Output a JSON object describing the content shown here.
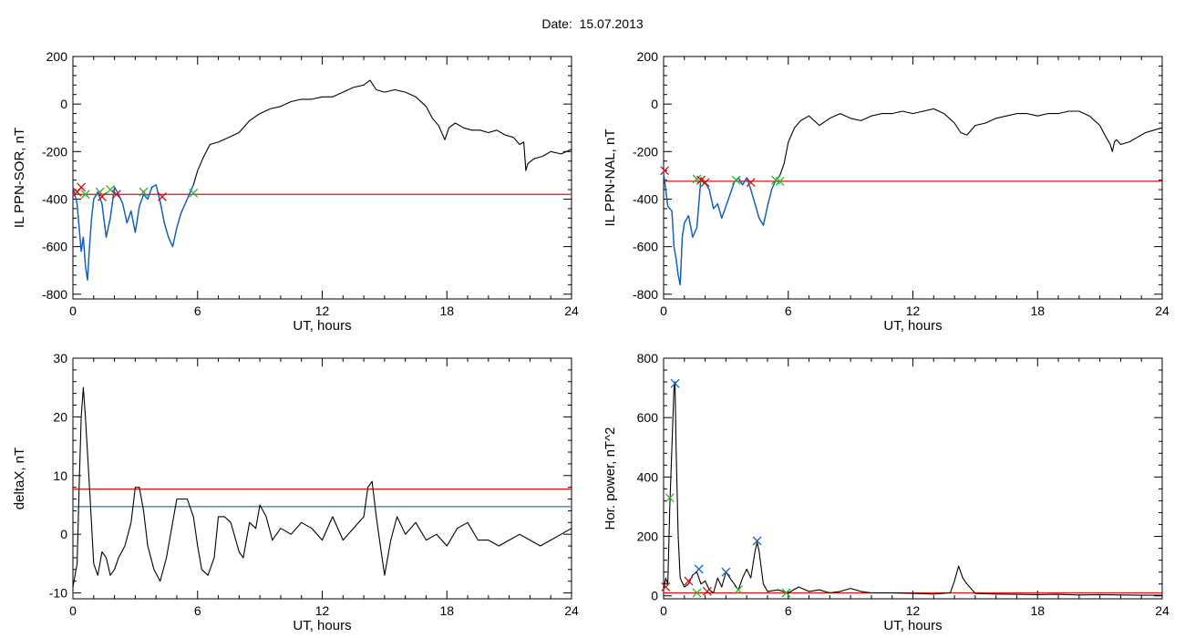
{
  "header": {
    "date_label": "Date:",
    "date_value": "15.07.2013"
  },
  "colors": {
    "trace": "#000000",
    "threshold_red": "#e01010",
    "threshold_blue": "#1f7ab8",
    "highlight": "#1060c0",
    "marker_red": "#d01010",
    "marker_green": "#30b030",
    "marker_blue": "#1060c0"
  },
  "chart_data": [
    {
      "id": "sor",
      "type": "line",
      "xlabel": "UT, hours",
      "ylabel": "IL PPN-SOR, nT",
      "xlim": [
        0,
        24
      ],
      "ylim": [
        -820,
        200
      ],
      "xticks": [
        0,
        6,
        12,
        18,
        24
      ],
      "yticks": [
        -800,
        -600,
        -400,
        -200,
        0,
        200
      ],
      "x": [
        0,
        0.2,
        0.4,
        0.5,
        0.6,
        0.7,
        0.8,
        0.9,
        1.0,
        1.2,
        1.4,
        1.6,
        1.8,
        2.0,
        2.2,
        2.4,
        2.6,
        2.8,
        3.0,
        3.2,
        3.4,
        3.6,
        3.8,
        4.0,
        4.2,
        4.4,
        4.6,
        4.8,
        5.0,
        5.2,
        5.4,
        5.6,
        5.8,
        6.0,
        6.3,
        6.6,
        7.0,
        7.5,
        8.0,
        8.5,
        9.0,
        9.5,
        10.0,
        10.5,
        11.0,
        11.5,
        12.0,
        12.5,
        13.0,
        13.5,
        14.0,
        14.3,
        14.6,
        15.0,
        15.5,
        16.0,
        16.5,
        17.0,
        17.3,
        17.6,
        17.9,
        18.1,
        18.4,
        18.8,
        19.2,
        19.6,
        20.0,
        20.4,
        20.8,
        21.2,
        21.5,
        21.7,
        21.8,
        21.9,
        22.2,
        22.6,
        23.0,
        23.5,
        24.0
      ],
      "values": [
        -350,
        -420,
        -620,
        -560,
        -680,
        -740,
        -600,
        -480,
        -400,
        -370,
        -420,
        -560,
        -480,
        -350,
        -380,
        -420,
        -500,
        -450,
        -540,
        -430,
        -380,
        -400,
        -350,
        -340,
        -410,
        -500,
        -560,
        -600,
        -520,
        -460,
        -420,
        -380,
        -340,
        -280,
        -220,
        -170,
        -160,
        -140,
        -120,
        -70,
        -40,
        -20,
        -10,
        10,
        20,
        20,
        30,
        30,
        50,
        70,
        80,
        100,
        60,
        50,
        60,
        50,
        30,
        -10,
        -60,
        -90,
        -150,
        -100,
        -80,
        -100,
        -110,
        -110,
        -120,
        -110,
        -130,
        -140,
        -170,
        -160,
        -280,
        -250,
        -230,
        -220,
        -200,
        -210,
        -190
      ],
      "threshold": -380,
      "highlight_until": 5.9,
      "markers": [
        {
          "x": 0.2,
          "y": -370,
          "color": "marker_red"
        },
        {
          "x": 0.4,
          "y": -350,
          "color": "marker_red"
        },
        {
          "x": 0.6,
          "y": -380,
          "color": "marker_green"
        },
        {
          "x": 1.3,
          "y": -370,
          "color": "marker_green"
        },
        {
          "x": 1.4,
          "y": -390,
          "color": "marker_red"
        },
        {
          "x": 1.8,
          "y": -360,
          "color": "marker_green"
        },
        {
          "x": 2.1,
          "y": -380,
          "color": "marker_red"
        },
        {
          "x": 3.4,
          "y": -370,
          "color": "marker_green"
        },
        {
          "x": 4.3,
          "y": -390,
          "color": "marker_red"
        },
        {
          "x": 5.8,
          "y": -375,
          "color": "marker_green"
        }
      ]
    },
    {
      "id": "nal",
      "type": "line",
      "xlabel": "UT, hours",
      "ylabel": "IL PPN-NAL, nT",
      "xlim": [
        0,
        24
      ],
      "ylim": [
        -820,
        200
      ],
      "xticks": [
        0,
        6,
        12,
        18,
        24
      ],
      "yticks": [
        -800,
        -600,
        -400,
        -200,
        0,
        200
      ],
      "x": [
        0,
        0.2,
        0.4,
        0.5,
        0.6,
        0.7,
        0.8,
        0.9,
        1.0,
        1.2,
        1.4,
        1.6,
        1.8,
        2.0,
        2.2,
        2.4,
        2.6,
        2.8,
        3.0,
        3.2,
        3.4,
        3.6,
        3.8,
        4.0,
        4.2,
        4.4,
        4.6,
        4.8,
        5.0,
        5.2,
        5.4,
        5.6,
        5.8,
        6.0,
        6.3,
        6.6,
        7.0,
        7.5,
        8.0,
        8.5,
        9.0,
        9.5,
        10.0,
        10.5,
        11.0,
        11.5,
        12.0,
        12.5,
        13.0,
        13.5,
        14.0,
        14.3,
        14.6,
        15.0,
        15.5,
        16.0,
        16.5,
        17.0,
        17.5,
        18.0,
        18.5,
        19.0,
        19.5,
        20.0,
        20.5,
        21.0,
        21.3,
        21.5,
        21.6,
        21.7,
        21.8,
        22.0,
        22.4,
        22.8,
        23.2,
        23.6,
        24.0
      ],
      "values": [
        -290,
        -430,
        -450,
        -600,
        -650,
        -720,
        -760,
        -560,
        -500,
        -470,
        -560,
        -520,
        -310,
        -330,
        -360,
        -440,
        -420,
        -480,
        -430,
        -380,
        -330,
        -310,
        -340,
        -310,
        -360,
        -420,
        -480,
        -510,
        -430,
        -360,
        -320,
        -300,
        -250,
        -160,
        -100,
        -70,
        -50,
        -90,
        -60,
        -40,
        -60,
        -70,
        -50,
        -40,
        -40,
        -30,
        -40,
        -30,
        -20,
        -40,
        -80,
        -120,
        -130,
        -90,
        -80,
        -60,
        -50,
        -40,
        -40,
        -50,
        -40,
        -40,
        -30,
        -30,
        -50,
        -90,
        -140,
        -170,
        -200,
        -160,
        -150,
        -170,
        -160,
        -140,
        -120,
        -110,
        -100
      ],
      "threshold": -325,
      "highlight_until": 5.6,
      "markers": [
        {
          "x": 0.05,
          "y": -280,
          "color": "marker_red"
        },
        {
          "x": 1.6,
          "y": -315,
          "color": "marker_green"
        },
        {
          "x": 1.8,
          "y": -320,
          "color": "marker_red"
        },
        {
          "x": 2.0,
          "y": -330,
          "color": "marker_red"
        },
        {
          "x": 3.5,
          "y": -320,
          "color": "marker_green"
        },
        {
          "x": 4.2,
          "y": -330,
          "color": "marker_red"
        },
        {
          "x": 5.4,
          "y": -320,
          "color": "marker_green"
        },
        {
          "x": 5.6,
          "y": -325,
          "color": "marker_green"
        }
      ]
    },
    {
      "id": "deltax",
      "type": "line",
      "xlabel": "UT, hours",
      "ylabel": "deltaX, nT",
      "xlim": [
        0,
        24
      ],
      "ylim": [
        -11,
        30
      ],
      "xticks": [
        0,
        6,
        12,
        18,
        24
      ],
      "yticks": [
        -10,
        0,
        10,
        20,
        30
      ],
      "x": [
        0,
        0.2,
        0.3,
        0.4,
        0.5,
        0.6,
        0.8,
        1.0,
        1.2,
        1.4,
        1.6,
        1.8,
        2.0,
        2.2,
        2.5,
        2.8,
        3.0,
        3.2,
        3.4,
        3.6,
        3.9,
        4.2,
        4.5,
        4.8,
        5.0,
        5.2,
        5.5,
        5.8,
        6.0,
        6.2,
        6.5,
        6.8,
        7.0,
        7.3,
        7.6,
        8.0,
        8.2,
        8.5,
        8.8,
        9.0,
        9.3,
        9.6,
        10.0,
        10.5,
        11.0,
        11.5,
        12.0,
        12.5,
        13.0,
        13.5,
        14.0,
        14.2,
        14.4,
        14.6,
        14.8,
        15.0,
        15.3,
        15.6,
        16.0,
        16.5,
        17.0,
        17.5,
        18.0,
        18.5,
        19.0,
        19.5,
        20.0,
        20.5,
        21.0,
        21.5,
        22.0,
        22.5,
        23.0,
        23.5,
        24.0
      ],
      "values": [
        -9,
        -5,
        8,
        20,
        25,
        20,
        8,
        -5,
        -7,
        -3,
        -4,
        -7,
        -6,
        -4,
        -2,
        2,
        8,
        8,
        4,
        -2,
        -6,
        -8,
        -4,
        2,
        6,
        6,
        6,
        3,
        -2,
        -6,
        -7,
        -4,
        3,
        3,
        2,
        -3,
        -4,
        2,
        1,
        5,
        3,
        -1,
        1,
        0,
        2,
        1,
        -1,
        3,
        -1,
        1,
        3,
        8,
        9,
        3,
        -2,
        -7,
        -1,
        3,
        0,
        2,
        -1,
        0,
        -2,
        1,
        2,
        -1,
        -1,
        -2,
        -1,
        0,
        -1,
        -2,
        -1,
        0,
        1
      ],
      "thresholds": [
        {
          "value": 7.7,
          "color": "threshold_red"
        },
        {
          "value": 4.7,
          "color": "threshold_blue"
        }
      ]
    },
    {
      "id": "power",
      "type": "line",
      "xlabel": "UT, hours",
      "ylabel": "Hor. power, nT^2",
      "xlim": [
        0,
        24
      ],
      "ylim": [
        -10,
        800
      ],
      "xticks": [
        0,
        6,
        12,
        18,
        24
      ],
      "yticks": [
        0,
        200,
        400,
        600,
        800
      ],
      "x": [
        0,
        0.1,
        0.2,
        0.3,
        0.4,
        0.5,
        0.55,
        0.6,
        0.7,
        0.8,
        1.0,
        1.2,
        1.4,
        1.6,
        1.8,
        2.0,
        2.2,
        2.4,
        2.6,
        2.8,
        3.0,
        3.2,
        3.4,
        3.6,
        3.8,
        4.0,
        4.2,
        4.4,
        4.5,
        4.6,
        4.8,
        5.0,
        5.5,
        6.0,
        6.5,
        7.0,
        7.5,
        8.0,
        8.5,
        9.0,
        9.5,
        10.0,
        11.0,
        12.0,
        13.0,
        13.8,
        14.0,
        14.2,
        14.4,
        14.6,
        15.0,
        16.0,
        17.0,
        18.0,
        19.0,
        20.0,
        21.0,
        22.0,
        23.0,
        24.0
      ],
      "values": [
        20,
        60,
        40,
        300,
        500,
        700,
        720,
        500,
        200,
        60,
        30,
        40,
        70,
        80,
        40,
        50,
        20,
        10,
        60,
        30,
        80,
        60,
        40,
        20,
        60,
        90,
        60,
        150,
        180,
        150,
        40,
        15,
        20,
        10,
        30,
        15,
        20,
        10,
        15,
        25,
        15,
        10,
        10,
        8,
        6,
        10,
        50,
        100,
        60,
        40,
        8,
        6,
        5,
        4,
        5,
        3,
        4,
        3,
        2,
        2
      ],
      "threshold": 10,
      "markers": [
        {
          "x": 0.1,
          "y": 30,
          "color": "marker_red"
        },
        {
          "x": 0.3,
          "y": 330,
          "color": "marker_green"
        },
        {
          "x": 0.55,
          "y": 715,
          "color": "marker_blue"
        },
        {
          "x": 1.2,
          "y": 50,
          "color": "marker_red"
        },
        {
          "x": 1.6,
          "y": 10,
          "color": "marker_green"
        },
        {
          "x": 1.7,
          "y": 90,
          "color": "marker_blue"
        },
        {
          "x": 2.1,
          "y": 15,
          "color": "marker_red"
        },
        {
          "x": 3.0,
          "y": 80,
          "color": "marker_blue"
        },
        {
          "x": 3.6,
          "y": 20,
          "color": "marker_green"
        },
        {
          "x": 4.5,
          "y": 185,
          "color": "marker_blue"
        },
        {
          "x": 5.9,
          "y": 10,
          "color": "marker_green"
        }
      ]
    }
  ]
}
